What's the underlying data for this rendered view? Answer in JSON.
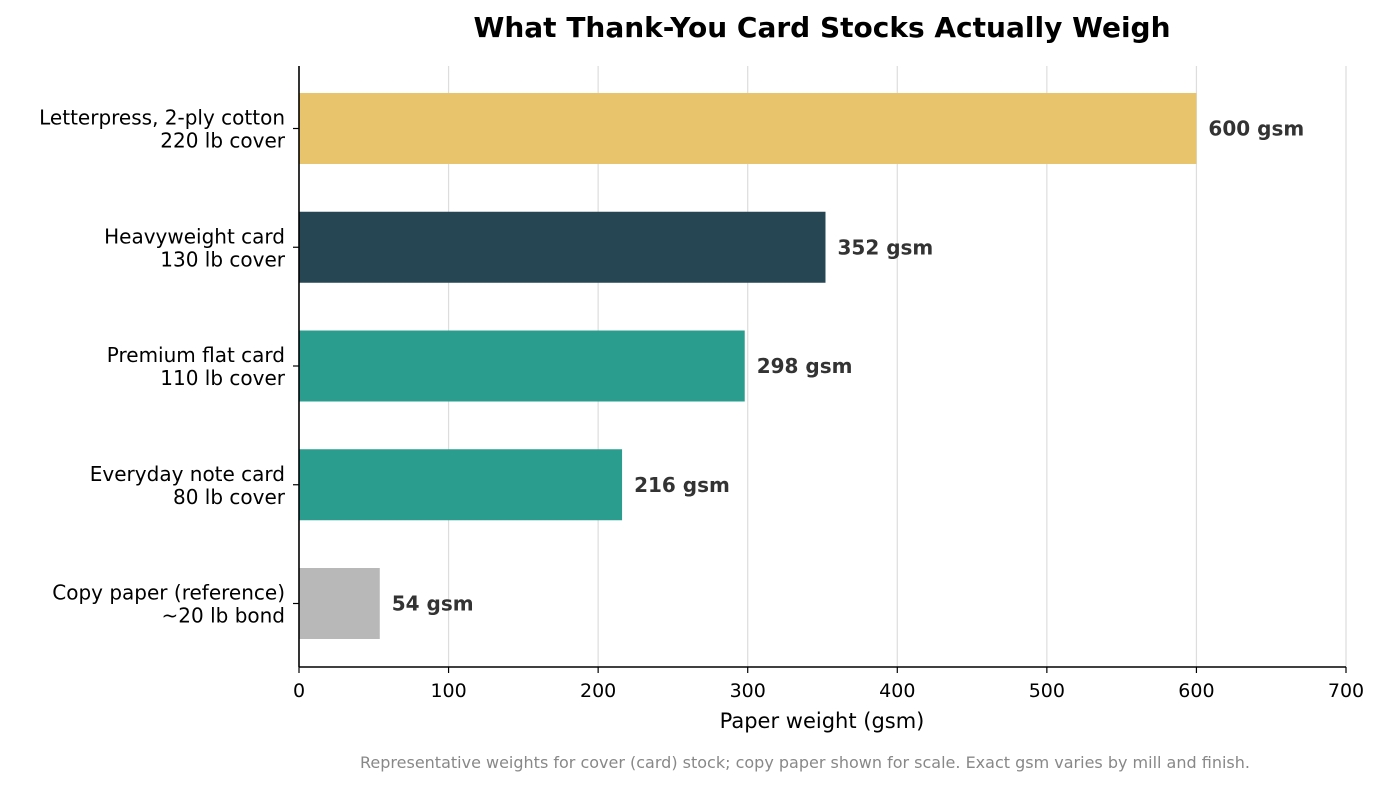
{
  "chart_data": {
    "type": "bar",
    "orientation": "horizontal",
    "title": "What Thank-You Card Stocks Actually Weigh",
    "xlabel": "Paper weight (gsm)",
    "ylabel": "",
    "xlim": [
      0,
      700
    ],
    "xticks": [
      "0",
      "100",
      "200",
      "300",
      "400",
      "500",
      "600",
      "700"
    ],
    "grid": "vertical",
    "categories": [
      [
        "Letterpress, 2-ply cotton",
        "220 lb cover"
      ],
      [
        "Heavyweight card",
        "130 lb cover"
      ],
      [
        "Premium flat card",
        "110 lb cover"
      ],
      [
        "Everyday note card",
        "80 lb cover"
      ],
      [
        "Copy paper (reference)",
        "~20 lb bond"
      ]
    ],
    "values": [
      600,
      352,
      298,
      216,
      54
    ],
    "value_labels": [
      "600 gsm",
      "352 gsm",
      "298 gsm",
      "216 gsm",
      "54 gsm"
    ],
    "colors": [
      "#e8c46c",
      "#264653",
      "#2a9d8f",
      "#2a9d8f",
      "#b8b8b8"
    ],
    "footnote": "Representative weights for cover (card) stock; copy paper shown for scale. Exact gsm varies by mill and finish."
  }
}
